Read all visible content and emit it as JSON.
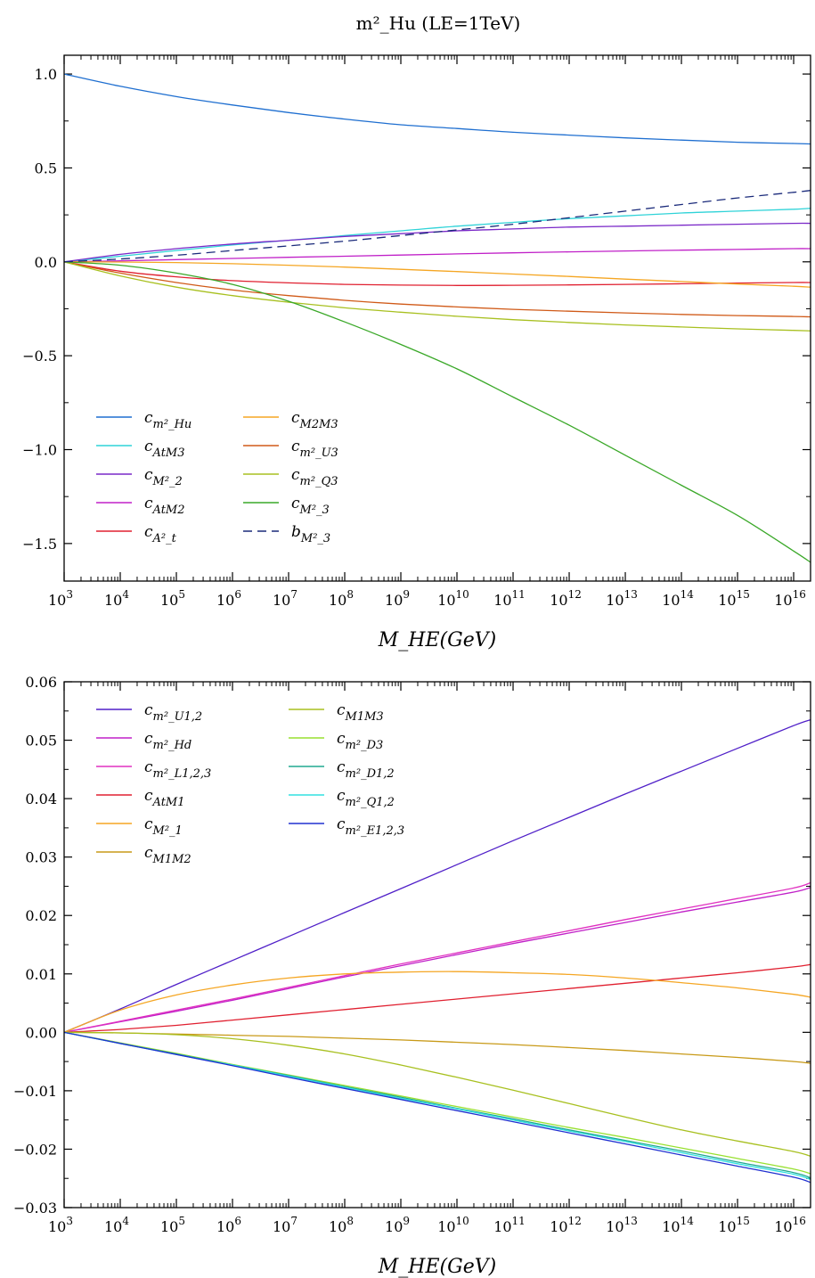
{
  "title": "m²_Hu (LE=1TeV)",
  "chart_data": [
    {
      "type": "line",
      "xlabel": "M_HE(GeV)",
      "ylabel": "",
      "x_scale": "log",
      "xlim": [
        1000,
        2e+16
      ],
      "ylim": [
        -1.7,
        1.1
      ],
      "x_ticks": [
        {
          "exp": 3,
          "label": "10",
          "sup": "3"
        },
        {
          "exp": 4,
          "label": "10",
          "sup": "4"
        },
        {
          "exp": 5,
          "label": "10",
          "sup": "5"
        },
        {
          "exp": 6,
          "label": "10",
          "sup": "6"
        },
        {
          "exp": 7,
          "label": "10",
          "sup": "7"
        },
        {
          "exp": 8,
          "label": "10",
          "sup": "8"
        },
        {
          "exp": 9,
          "label": "10",
          "sup": "9"
        },
        {
          "exp": 10,
          "label": "10",
          "sup": "10"
        },
        {
          "exp": 11,
          "label": "10",
          "sup": "11"
        },
        {
          "exp": 12,
          "label": "10",
          "sup": "12"
        },
        {
          "exp": 13,
          "label": "10",
          "sup": "13"
        },
        {
          "exp": 14,
          "label": "10",
          "sup": "14"
        },
        {
          "exp": 15,
          "label": "10",
          "sup": "15"
        },
        {
          "exp": 16,
          "label": "10",
          "sup": "16"
        }
      ],
      "y_ticks": [
        {
          "value": 1.0,
          "label": "1.0"
        },
        {
          "value": 0.5,
          "label": "0.5"
        },
        {
          "value": 0.0,
          "label": "0.0"
        },
        {
          "value": -0.5,
          "label": "−0.5"
        },
        {
          "value": -1.0,
          "label": "−1.0"
        },
        {
          "value": -1.5,
          "label": "−1.5"
        }
      ],
      "legend_position": "bottom-left",
      "x": [
        1000.0,
        10000.0,
        100000.0,
        1000000.0,
        10000000.0,
        100000000.0,
        1000000000.0,
        10000000000.0,
        100000000000.0,
        1000000000000.0,
        10000000000000.0,
        100000000000000.0,
        1000000000000000.0,
        1e+16,
        2e+16
      ],
      "series": [
        {
          "name": "c_{m²_Hu}",
          "color": "#1f6fd0",
          "dashed": false,
          "values": [
            1.0,
            0.935,
            0.88,
            0.835,
            0.795,
            0.76,
            0.73,
            0.71,
            0.69,
            0.675,
            0.66,
            0.648,
            0.637,
            0.63,
            0.628
          ]
        },
        {
          "name": "c_{AtM3}",
          "color": "#2fd3d8",
          "dashed": false,
          "values": [
            0.0,
            0.03,
            0.06,
            0.09,
            0.115,
            0.14,
            0.165,
            0.19,
            0.21,
            0.23,
            0.245,
            0.26,
            0.27,
            0.28,
            0.285
          ]
        },
        {
          "name": "c_{M²_2}",
          "color": "#7a28c8",
          "dashed": false,
          "values": [
            0.0,
            0.04,
            0.07,
            0.095,
            0.115,
            0.135,
            0.15,
            0.165,
            0.175,
            0.185,
            0.19,
            0.195,
            0.2,
            0.205,
            0.205
          ]
        },
        {
          "name": "c_{AtM2}",
          "color": "#c020c8",
          "dashed": false,
          "values": [
            0.0,
            0.005,
            0.012,
            0.018,
            0.024,
            0.03,
            0.036,
            0.042,
            0.048,
            0.053,
            0.058,
            0.062,
            0.066,
            0.07,
            0.07
          ]
        },
        {
          "name": "c_{A²_t}",
          "color": "#e02030",
          "dashed": false,
          "values": [
            0.0,
            -0.05,
            -0.08,
            -0.1,
            -0.112,
            -0.12,
            -0.124,
            -0.126,
            -0.125,
            -0.123,
            -0.12,
            -0.117,
            -0.113,
            -0.11,
            -0.11
          ]
        },
        {
          "name": "c_{M2M3}",
          "color": "#f5a623",
          "dashed": false,
          "values": [
            0.0,
            -0.001,
            -0.004,
            -0.01,
            -0.018,
            -0.028,
            -0.04,
            -0.052,
            -0.065,
            -0.078,
            -0.092,
            -0.105,
            -0.118,
            -0.13,
            -0.135
          ]
        },
        {
          "name": "c_{m²_U3}",
          "color": "#d05a18",
          "dashed": false,
          "values": [
            0.0,
            -0.06,
            -0.11,
            -0.15,
            -0.18,
            -0.205,
            -0.225,
            -0.24,
            -0.253,
            -0.263,
            -0.272,
            -0.28,
            -0.286,
            -0.291,
            -0.293
          ]
        },
        {
          "name": "c_{m²_Q3}",
          "color": "#a8c020",
          "dashed": false,
          "values": [
            0.0,
            -0.075,
            -0.135,
            -0.18,
            -0.215,
            -0.245,
            -0.268,
            -0.29,
            -0.308,
            -0.323,
            -0.336,
            -0.347,
            -0.357,
            -0.365,
            -0.368
          ]
        },
        {
          "name": "c_{M²_3}",
          "color": "#3aa828",
          "dashed": false,
          "values": [
            0.0,
            -0.018,
            -0.06,
            -0.12,
            -0.21,
            -0.32,
            -0.44,
            -0.57,
            -0.72,
            -0.87,
            -1.03,
            -1.19,
            -1.35,
            -1.54,
            -1.6
          ]
        },
        {
          "name": "b_{M²_3}",
          "color": "#1a2a7a",
          "dashed": true,
          "values": [
            0.0,
            0.015,
            0.035,
            0.06,
            0.085,
            0.11,
            0.14,
            0.17,
            0.2,
            0.235,
            0.27,
            0.305,
            0.34,
            0.37,
            0.38
          ]
        }
      ],
      "legend": {
        "columns": [
          [
            {
              "base": "c",
              "sub": "m²_Hu"
            },
            {
              "base": "c",
              "sub": "AtM3"
            },
            {
              "base": "c",
              "sub": "M²_2"
            },
            {
              "base": "c",
              "sub": "AtM2"
            },
            {
              "base": "c",
              "sub": "A²_t"
            }
          ],
          [
            {
              "base": "c",
              "sub": "M2M3"
            },
            {
              "base": "c",
              "sub": "m²_U3"
            },
            {
              "base": "c",
              "sub": "m²_Q3"
            },
            {
              "base": "c",
              "sub": "M²_3"
            },
            {
              "base": "b",
              "sub": "M²_3"
            }
          ]
        ]
      }
    },
    {
      "type": "line",
      "xlabel": "M_HE(GeV)",
      "ylabel": "",
      "x_scale": "log",
      "xlim": [
        1000,
        2e+16
      ],
      "ylim": [
        -0.03,
        0.06
      ],
      "x_ticks": [
        {
          "exp": 3,
          "label": "10",
          "sup": "3"
        },
        {
          "exp": 4,
          "label": "10",
          "sup": "4"
        },
        {
          "exp": 5,
          "label": "10",
          "sup": "5"
        },
        {
          "exp": 6,
          "label": "10",
          "sup": "6"
        },
        {
          "exp": 7,
          "label": "10",
          "sup": "7"
        },
        {
          "exp": 8,
          "label": "10",
          "sup": "8"
        },
        {
          "exp": 9,
          "label": "10",
          "sup": "9"
        },
        {
          "exp": 10,
          "label": "10",
          "sup": "10"
        },
        {
          "exp": 11,
          "label": "10",
          "sup": "11"
        },
        {
          "exp": 12,
          "label": "10",
          "sup": "12"
        },
        {
          "exp": 13,
          "label": "10",
          "sup": "13"
        },
        {
          "exp": 14,
          "label": "10",
          "sup": "14"
        },
        {
          "exp": 15,
          "label": "10",
          "sup": "15"
        },
        {
          "exp": 16,
          "label": "10",
          "sup": "16"
        }
      ],
      "y_ticks": [
        {
          "value": 0.06,
          "label": "0.06"
        },
        {
          "value": 0.05,
          "label": "0.05"
        },
        {
          "value": 0.04,
          "label": "0.04"
        },
        {
          "value": 0.03,
          "label": "0.03"
        },
        {
          "value": 0.02,
          "label": "0.02"
        },
        {
          "value": 0.01,
          "label": "0.01"
        },
        {
          "value": 0.0,
          "label": "0.00"
        },
        {
          "value": -0.01,
          "label": "−0.01"
        },
        {
          "value": -0.02,
          "label": "−0.02"
        },
        {
          "value": -0.03,
          "label": "−0.03"
        }
      ],
      "legend_position": "top-left",
      "x": [
        1000.0,
        10000.0,
        100000.0,
        1000000.0,
        10000000.0,
        100000000.0,
        1000000000.0,
        10000000000.0,
        100000000000.0,
        1000000000000.0,
        10000000000000.0,
        100000000000000.0,
        1000000000000000.0,
        1e+16,
        2e+16
      ],
      "series": [
        {
          "name": "c_{m²_U1,2}",
          "color": "#5020c8",
          "dashed": false,
          "values": [
            0.0,
            0.004,
            0.0082,
            0.0123,
            0.0164,
            0.0205,
            0.0246,
            0.0287,
            0.0328,
            0.0368,
            0.0408,
            0.0447,
            0.0486,
            0.0525,
            0.0535
          ]
        },
        {
          "name": "c_{m²_Hd}",
          "color": "#c020c8",
          "dashed": false,
          "values": [
            0.0,
            0.0018,
            0.0036,
            0.0055,
            0.0075,
            0.0095,
            0.0114,
            0.0133,
            0.0152,
            0.017,
            0.0188,
            0.0206,
            0.0223,
            0.024,
            0.0248
          ]
        },
        {
          "name": "c_{m²_L1,2,3}",
          "color": "#e030c0",
          "dashed": false,
          "values": [
            0.0,
            0.0019,
            0.0038,
            0.0057,
            0.0077,
            0.0097,
            0.0117,
            0.0136,
            0.0155,
            0.0174,
            0.0193,
            0.0211,
            0.0229,
            0.0247,
            0.0256
          ]
        },
        {
          "name": "c_{AtM1}",
          "color": "#e02030",
          "dashed": false,
          "values": [
            0.0,
            0.0005,
            0.0012,
            0.0021,
            0.003,
            0.0039,
            0.0048,
            0.0057,
            0.0066,
            0.0075,
            0.0084,
            0.0093,
            0.0102,
            0.0112,
            0.0116
          ]
        },
        {
          "name": "c_{M²_1}",
          "color": "#f5a623",
          "dashed": false,
          "values": [
            0.0,
            0.0038,
            0.0064,
            0.0081,
            0.0093,
            0.01,
            0.0103,
            0.0104,
            0.0102,
            0.0099,
            0.0093,
            0.0085,
            0.0076,
            0.0065,
            0.006
          ]
        },
        {
          "name": "c_{M1M2}",
          "color": "#c89a18",
          "dashed": false,
          "values": [
            0.0,
            -0.0001,
            -0.0003,
            -0.0005,
            -0.0007,
            -0.001,
            -0.0013,
            -0.0017,
            -0.0021,
            -0.0026,
            -0.0031,
            -0.0037,
            -0.0043,
            -0.005,
            -0.0053
          ]
        },
        {
          "name": "c_{M1M3}",
          "color": "#a8c020",
          "dashed": false,
          "values": [
            0.0,
            -0.0001,
            -0.0004,
            -0.0011,
            -0.0022,
            -0.0037,
            -0.0056,
            -0.0077,
            -0.0099,
            -0.0122,
            -0.0145,
            -0.0167,
            -0.0186,
            -0.0204,
            -0.0212
          ]
        },
        {
          "name": "c_{m²_D3}",
          "color": "#98e030",
          "dashed": false,
          "values": [
            0.0,
            -0.0018,
            -0.0036,
            -0.0055,
            -0.0073,
            -0.0091,
            -0.0109,
            -0.0127,
            -0.0145,
            -0.0163,
            -0.018,
            -0.0198,
            -0.0216,
            -0.0234,
            -0.0242
          ]
        },
        {
          "name": "c_{m²_D1,2}",
          "color": "#20a890",
          "dashed": false,
          "values": [
            0.0,
            -0.0019,
            -0.0037,
            -0.0056,
            -0.0074,
            -0.0093,
            -0.0111,
            -0.013,
            -0.0148,
            -0.0167,
            -0.0185,
            -0.0203,
            -0.0222,
            -0.024,
            -0.0249
          ]
        },
        {
          "name": "c_{m²_Q1,2}",
          "color": "#30e0e0",
          "dashed": false,
          "values": [
            0.0,
            -0.0019,
            -0.0038,
            -0.0056,
            -0.0075,
            -0.0094,
            -0.0113,
            -0.0131,
            -0.015,
            -0.0169,
            -0.0187,
            -0.0206,
            -0.0225,
            -0.0243,
            -0.0252
          ]
        },
        {
          "name": "c_{m²_E1,2,3}",
          "color": "#2030d0",
          "dashed": false,
          "values": [
            0.0,
            -0.0019,
            -0.0038,
            -0.0057,
            -0.0077,
            -0.0096,
            -0.0115,
            -0.0134,
            -0.0153,
            -0.0172,
            -0.0191,
            -0.021,
            -0.0229,
            -0.0248,
            -0.0257
          ]
        }
      ],
      "legend": {
        "columns": [
          [
            {
              "base": "c",
              "sub": "m²_U1,2"
            },
            {
              "base": "c",
              "sub": "m²_Hd"
            },
            {
              "base": "c",
              "sub": "m²_L1,2,3"
            },
            {
              "base": "c",
              "sub": "AtM1"
            },
            {
              "base": "c",
              "sub": "M²_1"
            },
            {
              "base": "c",
              "sub": "M1M2"
            }
          ],
          [
            {
              "base": "c",
              "sub": "M1M3"
            },
            {
              "base": "c",
              "sub": "m²_D3"
            },
            {
              "base": "c",
              "sub": "m²_D1,2"
            },
            {
              "base": "c",
              "sub": "m²_Q1,2"
            },
            {
              "base": "c",
              "sub": "m²_E1,2,3"
            }
          ]
        ]
      }
    }
  ]
}
